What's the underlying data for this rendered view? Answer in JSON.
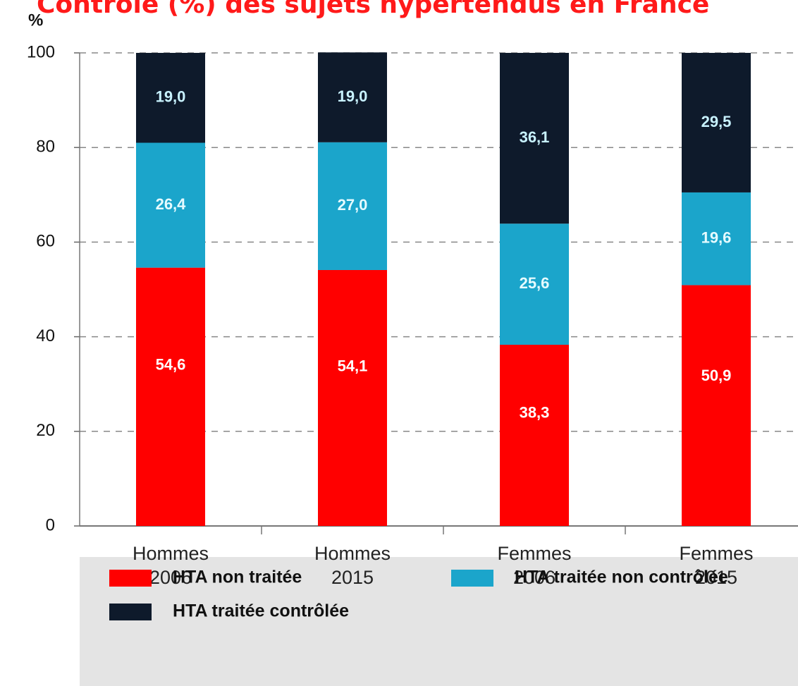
{
  "chart_data": {
    "type": "stacked_bar",
    "title": "Contrôle (%) des sujets hypertendus en France",
    "y_label": "%",
    "categories": [
      "Hommes 2006",
      "Hommes 2015",
      "Femmes 2006",
      "Femmes 2015"
    ],
    "series": [
      {
        "name": "HTA non traitée",
        "color": "#ff0000",
        "label_color": "#ffffff",
        "values": [
          54.6,
          54.1,
          38.3,
          50.9
        ],
        "value_labels": [
          "54,6",
          "54,1",
          "38,3",
          "50,9"
        ]
      },
      {
        "name": "HTA traitée non contrôlée",
        "color": "#1ba5cb",
        "label_color": "#e6fbff",
        "values": [
          26.4,
          27.0,
          25.6,
          19.6
        ],
        "value_labels": [
          "26,4",
          "27,0",
          "25,6",
          "19,6"
        ]
      },
      {
        "name": "HTA traitée contrôlée",
        "color": "#0e1a2b",
        "label_color": "#c8f2ff",
        "values": [
          19.0,
          19.0,
          36.1,
          29.5
        ],
        "value_labels": [
          "19,0",
          "19,0",
          "36,1",
          "29,5"
        ]
      }
    ],
    "ylim": [
      0,
      100
    ],
    "yticks": [
      0,
      20,
      40,
      60,
      80,
      100
    ],
    "grid": true
  }
}
